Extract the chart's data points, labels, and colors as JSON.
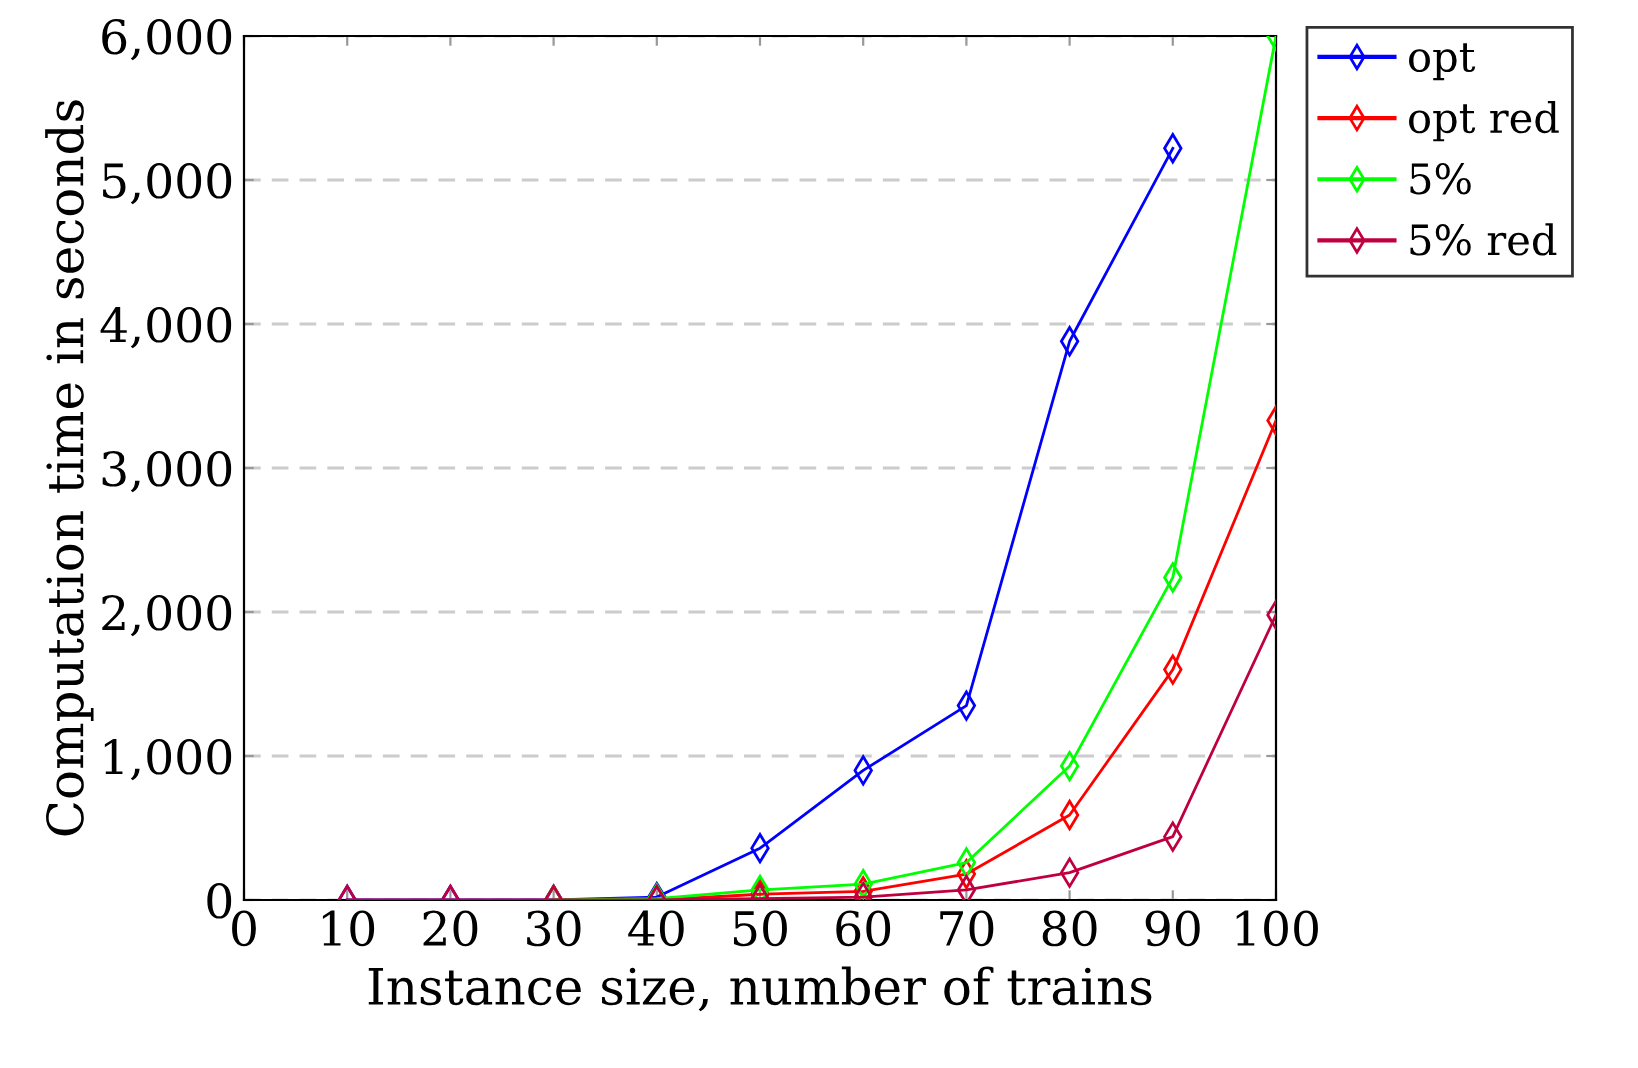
{
  "chart_data": {
    "type": "line",
    "xlabel": "Instance size, number of trains",
    "ylabel": "Computation time in seconds",
    "x": [
      10,
      20,
      30,
      40,
      50,
      60,
      70,
      80,
      90,
      100
    ],
    "series": [
      {
        "name": "opt",
        "color": "#0000ff",
        "values": [
          0,
          0,
          0,
          20,
          360,
          900,
          1350,
          3880,
          5220,
          null
        ]
      },
      {
        "name": "opt red",
        "color": "#ff0000",
        "values": [
          null,
          null,
          0,
          0,
          40,
          60,
          180,
          590,
          1600,
          3330
        ]
      },
      {
        "name": "5%",
        "color": "#00ff00",
        "values": [
          null,
          null,
          0,
          10,
          70,
          110,
          260,
          930,
          2240,
          6000
        ]
      },
      {
        "name": "5% red",
        "color": "#bf0040",
        "values": [
          0,
          0,
          0,
          0,
          10,
          20,
          70,
          190,
          440,
          1980
        ]
      }
    ],
    "xlim": [
      0,
      100
    ],
    "xticks": [
      0,
      10,
      20,
      30,
      40,
      50,
      60,
      70,
      80,
      90,
      100
    ],
    "ylim": [
      0,
      6000
    ],
    "yticks": [
      0,
      {
        "value": 1000,
        "label": "1,000"
      },
      {
        "value": 2000,
        "label": "2,000"
      },
      {
        "value": 3000,
        "label": "3,000"
      },
      {
        "value": 4000,
        "label": "4,000"
      },
      {
        "value": 5000,
        "label": "5,000"
      },
      {
        "value": 6000,
        "label": "6,000"
      }
    ],
    "grid": "y",
    "legend": "top right",
    "marker": "diamond",
    "line_style": "solid"
  }
}
